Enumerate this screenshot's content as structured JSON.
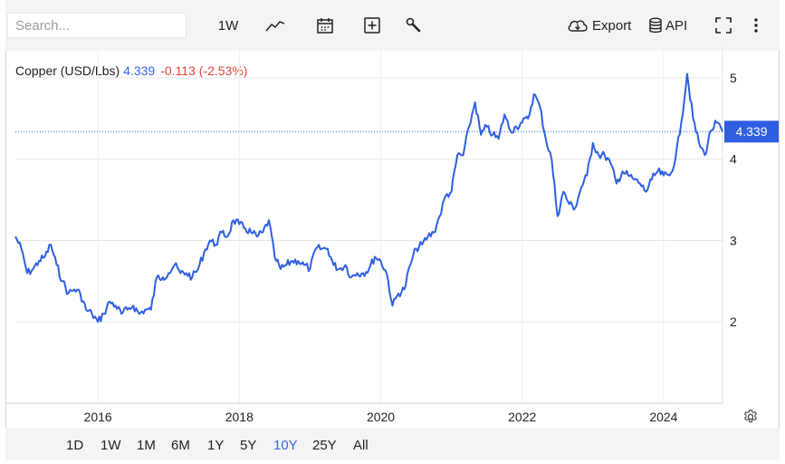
{
  "toolbar": {
    "search_placeholder": "Search...",
    "interval_label": "1W",
    "export_label": "Export",
    "api_label": "API"
  },
  "legend": {
    "name": "Copper (USD/Lbs)",
    "price": "4.339",
    "change": "-0.113 (-2.53%)"
  },
  "ranges": [
    {
      "label": "1D"
    },
    {
      "label": "1W"
    },
    {
      "label": "1M"
    },
    {
      "label": "6M"
    },
    {
      "label": "1Y"
    },
    {
      "label": "5Y"
    },
    {
      "label": "10Y"
    },
    {
      "label": "25Y"
    },
    {
      "label": "All"
    }
  ],
  "active_range": "10Y",
  "colors": {
    "line": "#2f5fe0",
    "accent": "#2f5fe0",
    "negative": "#e0463c",
    "grid": "#e6e6e6"
  },
  "chart_data": {
    "type": "line",
    "title": "",
    "xlabel": "",
    "ylabel": "",
    "x_tick_labels": [
      "2016",
      "2018",
      "2020",
      "2022",
      "2024"
    ],
    "y_tick_labels": [
      "2",
      "3",
      "4",
      "5"
    ],
    "ylim": [
      1.0,
      5.4
    ],
    "xlim": [
      "2014-11",
      "2024-11"
    ],
    "grid": true,
    "last_value_label": "4.339",
    "series": [
      {
        "values": [
          {
            "x": "2014-11",
            "y": 3.05
          },
          {
            "x": "2014-12",
            "y": 2.9
          },
          {
            "x": "2015-01",
            "y": 2.6
          },
          {
            "x": "2015-02",
            "y": 2.65
          },
          {
            "x": "2015-03",
            "y": 2.75
          },
          {
            "x": "2015-04",
            "y": 2.8
          },
          {
            "x": "2015-05",
            "y": 2.95
          },
          {
            "x": "2015-06",
            "y": 2.7
          },
          {
            "x": "2015-07",
            "y": 2.5
          },
          {
            "x": "2015-08",
            "y": 2.35
          },
          {
            "x": "2015-09",
            "y": 2.4
          },
          {
            "x": "2015-10",
            "y": 2.35
          },
          {
            "x": "2015-11",
            "y": 2.15
          },
          {
            "x": "2015-12",
            "y": 2.1
          },
          {
            "x": "2016-01",
            "y": 2.0
          },
          {
            "x": "2016-02",
            "y": 2.1
          },
          {
            "x": "2016-03",
            "y": 2.25
          },
          {
            "x": "2016-04",
            "y": 2.2
          },
          {
            "x": "2016-05",
            "y": 2.1
          },
          {
            "x": "2016-06",
            "y": 2.15
          },
          {
            "x": "2016-07",
            "y": 2.2
          },
          {
            "x": "2016-08",
            "y": 2.1
          },
          {
            "x": "2016-09",
            "y": 2.15
          },
          {
            "x": "2016-10",
            "y": 2.15
          },
          {
            "x": "2016-11",
            "y": 2.55
          },
          {
            "x": "2016-12",
            "y": 2.55
          },
          {
            "x": "2017-01",
            "y": 2.6
          },
          {
            "x": "2017-02",
            "y": 2.7
          },
          {
            "x": "2017-03",
            "y": 2.6
          },
          {
            "x": "2017-04",
            "y": 2.6
          },
          {
            "x": "2017-05",
            "y": 2.55
          },
          {
            "x": "2017-06",
            "y": 2.65
          },
          {
            "x": "2017-07",
            "y": 2.85
          },
          {
            "x": "2017-08",
            "y": 3.0
          },
          {
            "x": "2017-09",
            "y": 2.95
          },
          {
            "x": "2017-10",
            "y": 3.1
          },
          {
            "x": "2017-11",
            "y": 3.05
          },
          {
            "x": "2017-12",
            "y": 3.25
          },
          {
            "x": "2018-01",
            "y": 3.2
          },
          {
            "x": "2018-02",
            "y": 3.15
          },
          {
            "x": "2018-03",
            "y": 3.1
          },
          {
            "x": "2018-04",
            "y": 3.05
          },
          {
            "x": "2018-05",
            "y": 3.1
          },
          {
            "x": "2018-06",
            "y": 3.25
          },
          {
            "x": "2018-07",
            "y": 2.8
          },
          {
            "x": "2018-08",
            "y": 2.65
          },
          {
            "x": "2018-09",
            "y": 2.7
          },
          {
            "x": "2018-10",
            "y": 2.75
          },
          {
            "x": "2018-11",
            "y": 2.75
          },
          {
            "x": "2018-12",
            "y": 2.7
          },
          {
            "x": "2019-01",
            "y": 2.65
          },
          {
            "x": "2019-02",
            "y": 2.9
          },
          {
            "x": "2019-03",
            "y": 2.9
          },
          {
            "x": "2019-04",
            "y": 2.9
          },
          {
            "x": "2019-05",
            "y": 2.7
          },
          {
            "x": "2019-06",
            "y": 2.65
          },
          {
            "x": "2019-07",
            "y": 2.7
          },
          {
            "x": "2019-08",
            "y": 2.55
          },
          {
            "x": "2019-09",
            "y": 2.6
          },
          {
            "x": "2019-10",
            "y": 2.6
          },
          {
            "x": "2019-11",
            "y": 2.65
          },
          {
            "x": "2019-12",
            "y": 2.8
          },
          {
            "x": "2020-01",
            "y": 2.75
          },
          {
            "x": "2020-02",
            "y": 2.6
          },
          {
            "x": "2020-03",
            "y": 2.2
          },
          {
            "x": "2020-04",
            "y": 2.35
          },
          {
            "x": "2020-05",
            "y": 2.4
          },
          {
            "x": "2020-06",
            "y": 2.7
          },
          {
            "x": "2020-07",
            "y": 2.9
          },
          {
            "x": "2020-08",
            "y": 2.95
          },
          {
            "x": "2020-09",
            "y": 3.05
          },
          {
            "x": "2020-10",
            "y": 3.1
          },
          {
            "x": "2020-11",
            "y": 3.3
          },
          {
            "x": "2020-12",
            "y": 3.55
          },
          {
            "x": "2021-01",
            "y": 3.6
          },
          {
            "x": "2021-02",
            "y": 4.05
          },
          {
            "x": "2021-03",
            "y": 4.05
          },
          {
            "x": "2021-04",
            "y": 4.4
          },
          {
            "x": "2021-05",
            "y": 4.7
          },
          {
            "x": "2021-06",
            "y": 4.3
          },
          {
            "x": "2021-07",
            "y": 4.4
          },
          {
            "x": "2021-08",
            "y": 4.3
          },
          {
            "x": "2021-09",
            "y": 4.25
          },
          {
            "x": "2021-10",
            "y": 4.55
          },
          {
            "x": "2021-11",
            "y": 4.35
          },
          {
            "x": "2021-12",
            "y": 4.4
          },
          {
            "x": "2022-01",
            "y": 4.45
          },
          {
            "x": "2022-02",
            "y": 4.5
          },
          {
            "x": "2022-03",
            "y": 4.8
          },
          {
            "x": "2022-04",
            "y": 4.65
          },
          {
            "x": "2022-05",
            "y": 4.25
          },
          {
            "x": "2022-06",
            "y": 4.0
          },
          {
            "x": "2022-07",
            "y": 3.3
          },
          {
            "x": "2022-08",
            "y": 3.6
          },
          {
            "x": "2022-09",
            "y": 3.45
          },
          {
            "x": "2022-10",
            "y": 3.4
          },
          {
            "x": "2022-11",
            "y": 3.65
          },
          {
            "x": "2022-12",
            "y": 3.8
          },
          {
            "x": "2023-01",
            "y": 4.2
          },
          {
            "x": "2023-02",
            "y": 4.05
          },
          {
            "x": "2023-03",
            "y": 4.05
          },
          {
            "x": "2023-04",
            "y": 3.95
          },
          {
            "x": "2023-05",
            "y": 3.7
          },
          {
            "x": "2023-06",
            "y": 3.85
          },
          {
            "x": "2023-07",
            "y": 3.8
          },
          {
            "x": "2023-08",
            "y": 3.75
          },
          {
            "x": "2023-09",
            "y": 3.7
          },
          {
            "x": "2023-10",
            "y": 3.6
          },
          {
            "x": "2023-11",
            "y": 3.75
          },
          {
            "x": "2023-12",
            "y": 3.85
          },
          {
            "x": "2024-01",
            "y": 3.8
          },
          {
            "x": "2024-02",
            "y": 3.8
          },
          {
            "x": "2024-03",
            "y": 4.0
          },
          {
            "x": "2024-04",
            "y": 4.45
          },
          {
            "x": "2024-05",
            "y": 5.05
          },
          {
            "x": "2024-06",
            "y": 4.5
          },
          {
            "x": "2024-07",
            "y": 4.2
          },
          {
            "x": "2024-08",
            "y": 4.05
          },
          {
            "x": "2024-09",
            "y": 4.35
          },
          {
            "x": "2024-10",
            "y": 4.45
          },
          {
            "x": "2024-11",
            "y": 4.339
          }
        ]
      }
    ]
  }
}
